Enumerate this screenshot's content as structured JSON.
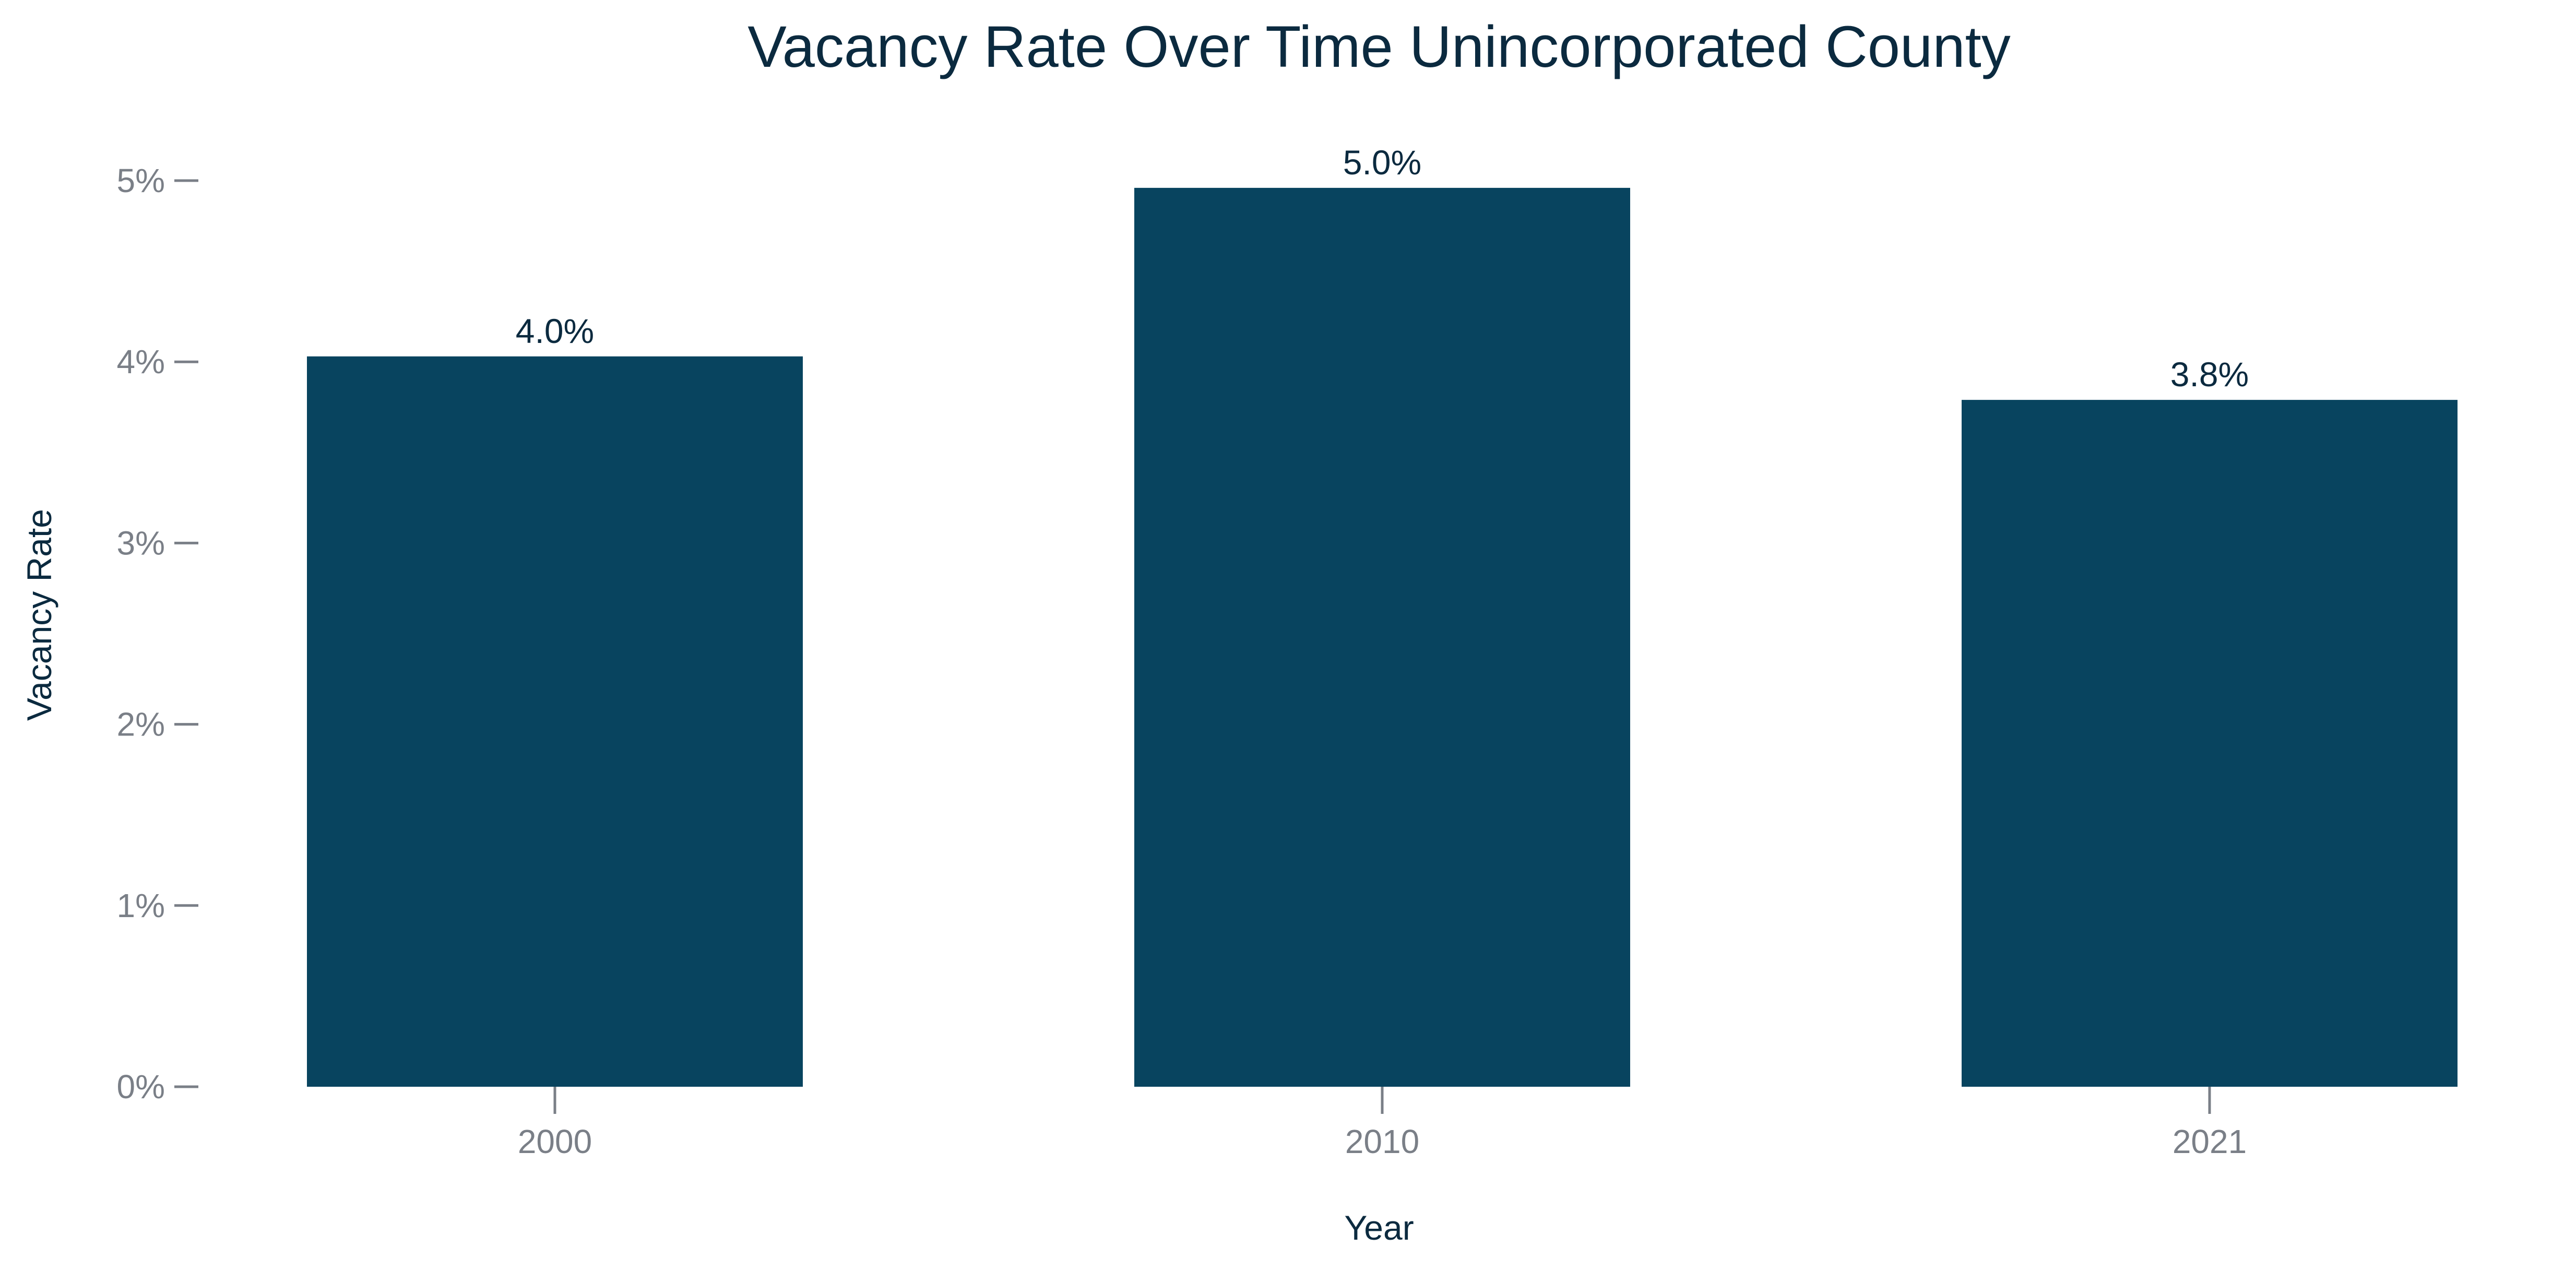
{
  "chart_data": {
    "type": "bar",
    "title": "Vacancy Rate Over Time Unincorporated County",
    "xlabel": "Year",
    "ylabel": "Vacancy Rate",
    "categories": [
      "2000",
      "2010",
      "2021"
    ],
    "values": [
      4.03,
      4.96,
      3.79
    ],
    "data_labels": [
      "4.0%",
      "5.0%",
      "3.8%"
    ],
    "ylim": [
      0,
      5.1
    ],
    "y_ticks": [
      0,
      1,
      2,
      3,
      4,
      5
    ],
    "y_tick_labels": [
      "0%",
      "1%",
      "2%",
      "3%",
      "4%",
      "5%"
    ],
    "grid": false,
    "colors": {
      "bar": "#08445f",
      "title": "#0b2a3f",
      "axis_label": "#0b2a3f",
      "tick_label": "#7a7f87",
      "tick_mark": "#7a7f87",
      "data_label": "#0b2a3f"
    }
  }
}
